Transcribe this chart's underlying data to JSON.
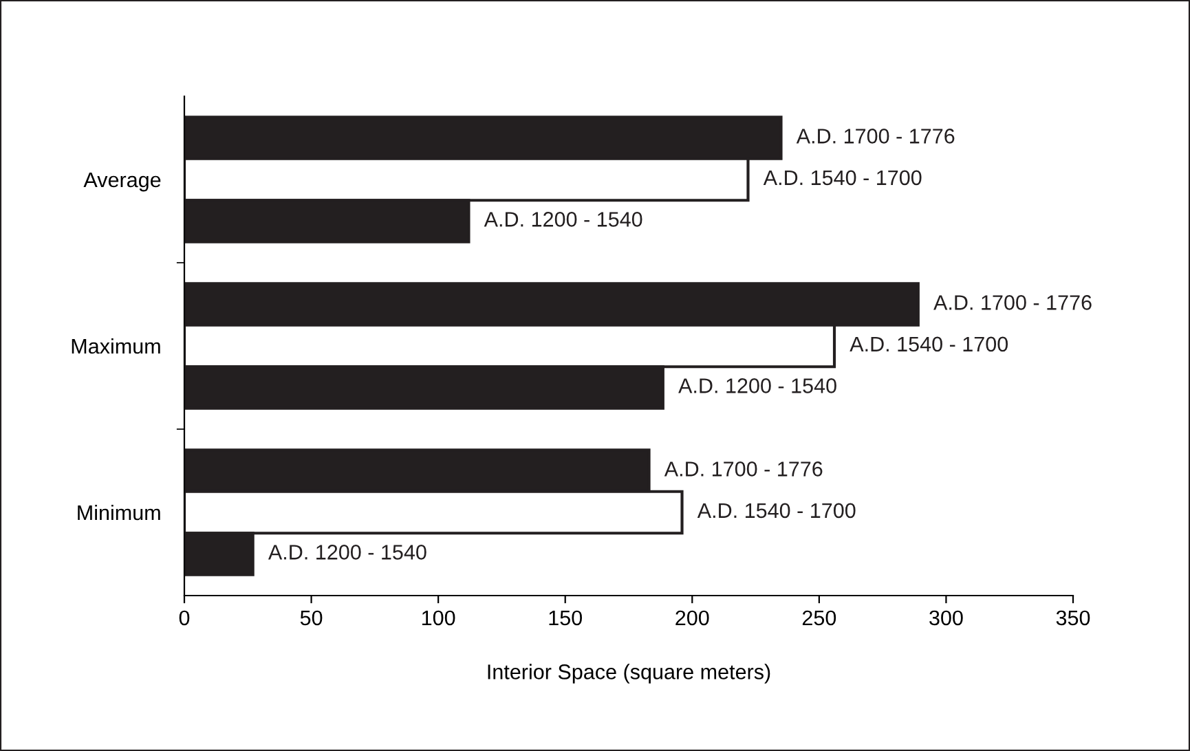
{
  "chart_data": {
    "type": "bar",
    "orientation": "horizontal",
    "xlabel": "Interior Space (square meters)",
    "categories": [
      "Average",
      "Maximum",
      "Minimum"
    ],
    "series": [
      {
        "name": "A.D. 1700 - 1776",
        "color": "#231f20",
        "values": [
          235,
          289,
          183
        ]
      },
      {
        "name": "A.D. 1540 - 1700",
        "color": "#ffffff",
        "values": [
          222,
          256,
          196
        ]
      },
      {
        "name": "A.D. 1200 - 1540",
        "color": "#231f20",
        "values": [
          112,
          188.5,
          27
        ]
      }
    ],
    "xlim": [
      0,
      350
    ],
    "xticks": [
      0,
      50,
      100,
      150,
      200,
      250,
      300,
      350
    ],
    "grid": false,
    "legend": false
  }
}
